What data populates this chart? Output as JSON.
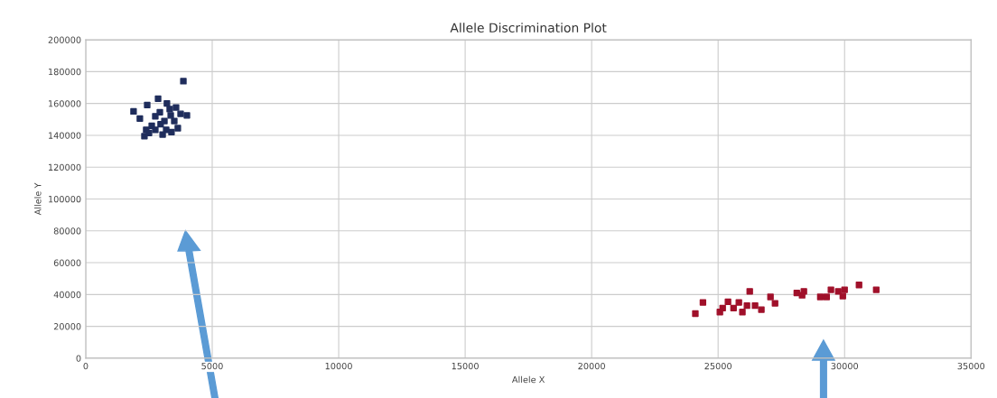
{
  "chart_data": {
    "type": "scatter",
    "title": "Allele Discrimination Plot",
    "xlabel": "Allele X",
    "ylabel": "Allele Y",
    "xlim": [
      0,
      35000
    ],
    "xticks": [
      0,
      5000,
      10000,
      15000,
      20000,
      25000,
      30000,
      35000
    ],
    "ylim": [
      0,
      200000
    ],
    "yticks": [
      0,
      20000,
      40000,
      60000,
      80000,
      100000,
      120000,
      140000,
      160000,
      180000,
      200000
    ],
    "grid": true,
    "marker": "square",
    "series": [
      {
        "color": "#1f2d5c",
        "x": [
          3860,
          1890,
          2430,
          2860,
          3210,
          3570,
          2930,
          3360,
          3750,
          4000,
          2140,
          2750,
          3110,
          3500,
          2610,
          2960,
          2390,
          2750,
          3180,
          3640,
          2320,
          2500,
          3040,
          3390,
          3320
        ],
        "values": [
          174000,
          155000,
          159000,
          163000,
          160000,
          157500,
          154500,
          152500,
          153500,
          152500,
          150500,
          152000,
          149000,
          149000,
          146000,
          147000,
          143500,
          143500,
          143500,
          144500,
          139500,
          141500,
          140500,
          142000,
          156500
        ]
      },
      {
        "color": "#a0102a",
        "x": [
          24100,
          24400,
          25070,
          25180,
          25390,
          25610,
          25820,
          25960,
          26140,
          26250,
          26460,
          26710,
          27070,
          27250,
          28110,
          28320,
          29040,
          29290,
          29460,
          29750,
          29930,
          30000,
          30570,
          31250,
          28390
        ],
        "values": [
          28000,
          35000,
          29000,
          31500,
          35500,
          31500,
          35000,
          29000,
          33000,
          42000,
          33000,
          30500,
          38500,
          34500,
          41000,
          39500,
          38500,
          38500,
          43000,
          42000,
          39000,
          43000,
          46000,
          43000,
          42000
        ]
      }
    ]
  }
}
